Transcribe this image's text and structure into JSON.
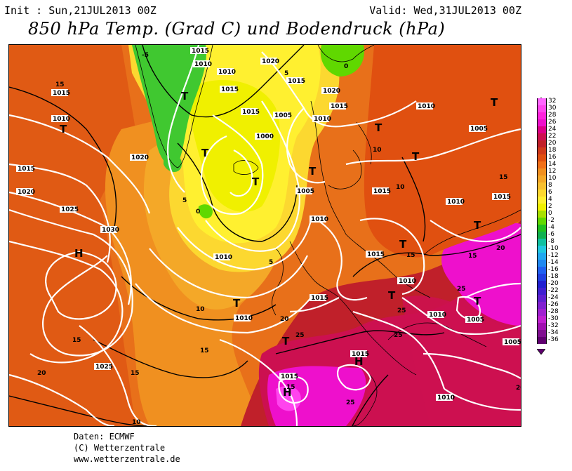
{
  "header": {
    "init": "Init : Sun,21JUL2013 00Z",
    "valid": "Valid: Wed,31JUL2013 00Z",
    "title": "850 hPa Temp. (Grad C) und Bodendruck (hPa)"
  },
  "legend": {
    "entries": [
      {
        "label": "32",
        "color": "#ff66ff"
      },
      {
        "label": "30",
        "color": "#ff44ee"
      },
      {
        "label": "28",
        "color": "#ff22dd"
      },
      {
        "label": "26",
        "color": "#ee10cc"
      },
      {
        "label": "24",
        "color": "#dd0088"
      },
      {
        "label": "22",
        "color": "#cc1050"
      },
      {
        "label": "20",
        "color": "#c0202a"
      },
      {
        "label": "18",
        "color": "#d03a1a"
      },
      {
        "label": "16",
        "color": "#e05010"
      },
      {
        "label": "14",
        "color": "#f07018"
      },
      {
        "label": "12",
        "color": "#f09020"
      },
      {
        "label": "10",
        "color": "#f4a828"
      },
      {
        "label": "8",
        "color": "#f8c030"
      },
      {
        "label": "6",
        "color": "#fcd830"
      },
      {
        "label": "4",
        "color": "#fff030"
      },
      {
        "label": "2",
        "color": "#f0f000"
      },
      {
        "label": "0",
        "color": "#a8e000"
      },
      {
        "label": "-2",
        "color": "#60d800"
      },
      {
        "label": "-4",
        "color": "#20c020"
      },
      {
        "label": "-6",
        "color": "#10b050"
      },
      {
        "label": "-8",
        "color": "#10c0a0"
      },
      {
        "label": "-10",
        "color": "#20c8e0"
      },
      {
        "label": "-12",
        "color": "#20a8f0"
      },
      {
        "label": "-14",
        "color": "#2088f0"
      },
      {
        "label": "-16",
        "color": "#2060f0"
      },
      {
        "label": "-18",
        "color": "#2040e0"
      },
      {
        "label": "-20",
        "color": "#2020d0"
      },
      {
        "label": "-22",
        "color": "#4020d0"
      },
      {
        "label": "-24",
        "color": "#6020d0"
      },
      {
        "label": "-26",
        "color": "#8020d0"
      },
      {
        "label": "-28",
        "color": "#a020d0"
      },
      {
        "label": "-30",
        "color": "#c020d0"
      },
      {
        "label": "-32",
        "color": "#a010b0"
      },
      {
        "label": "-34",
        "color": "#801090"
      },
      {
        "label": "-36",
        "color": "#600070"
      }
    ]
  },
  "map": {
    "pressure_labels": [
      "1015",
      "1010",
      "1020",
      "1015",
      "1010",
      "1015",
      "1005",
      "1000",
      "1015",
      "1010",
      "1020",
      "1015",
      "1010",
      "1005",
      "1015",
      "1020",
      "1025",
      "1030",
      "1015",
      "1010",
      "1005",
      "1010",
      "1015",
      "1010",
      "1015",
      "1010",
      "1015",
      "1010",
      "1010",
      "1005",
      "1015",
      "1025",
      "1015",
      "1010",
      "1005",
      "1010",
      "1020",
      "1020"
    ],
    "temperature_labels": [
      "-5",
      "0",
      "5",
      "5",
      "0",
      "5",
      "10",
      "15",
      "10",
      "15",
      "10",
      "15",
      "20",
      "15",
      "20",
      "25",
      "15",
      "25",
      "20",
      "25",
      "15",
      "20",
      "10",
      "15",
      "25",
      "25",
      "15"
    ],
    "highs": [
      "H",
      "H",
      "H"
    ],
    "lows": [
      "T",
      "T",
      "T",
      "T",
      "T",
      "T",
      "T",
      "T",
      "T",
      "T",
      "T",
      "T",
      "T",
      "T"
    ]
  },
  "credits": {
    "line1": "Daten: ECMWF",
    "line2": "(C) Wetterzentrale",
    "line3": "www.wetterzentrale.de"
  }
}
